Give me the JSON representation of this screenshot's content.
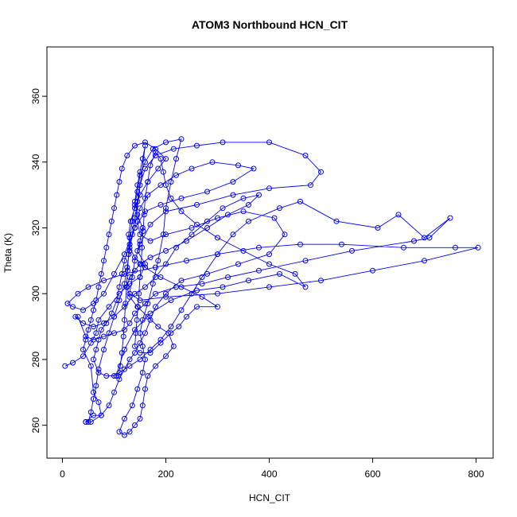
{
  "chart_data": {
    "type": "line",
    "title": "ATOM3 Northbound HCN_CIT",
    "xlabel": "HCN_CIT",
    "ylabel": "Theta (K)",
    "xlim": [
      -30,
      833
    ],
    "ylim": [
      250,
      375
    ],
    "xticks": [
      0,
      200,
      400,
      600,
      800
    ],
    "yticks": [
      260,
      280,
      300,
      320,
      340,
      360
    ],
    "grid": false,
    "legend": "none",
    "color": "#0000ff",
    "marker": "open-circle",
    "series": [
      {
        "name": "",
        "points": [
          [
            5,
            278
          ],
          [
            20,
            279
          ],
          [
            40,
            281
          ],
          [
            55,
            285
          ],
          [
            65,
            288
          ],
          [
            70,
            292
          ],
          [
            90,
            296
          ],
          [
            110,
            300
          ],
          [
            130,
            303
          ],
          [
            150,
            305
          ],
          [
            160,
            309
          ],
          [
            145,
            313
          ],
          [
            150,
            316
          ],
          [
            155,
            320
          ],
          [
            145,
            324
          ],
          [
            140,
            328
          ],
          [
            145,
            333
          ],
          [
            150,
            337
          ],
          [
            155,
            341
          ],
          [
            160,
            345
          ],
          [
            140,
            320
          ],
          [
            120,
            312
          ],
          [
            100,
            306
          ],
          [
            80,
            300
          ],
          [
            60,
            297
          ],
          [
            40,
            295
          ],
          [
            20,
            296
          ],
          [
            10,
            297
          ],
          [
            30,
            300
          ],
          [
            50,
            302
          ],
          [
            80,
            304
          ],
          [
            120,
            306
          ],
          [
            180,
            308
          ],
          [
            240,
            310
          ],
          [
            300,
            312
          ],
          [
            380,
            314
          ],
          [
            460,
            315
          ],
          [
            540,
            315
          ],
          [
            660,
            314
          ],
          [
            760,
            314
          ],
          [
            804,
            314
          ],
          [
            700,
            310
          ],
          [
            600,
            307
          ],
          [
            500,
            304
          ],
          [
            400,
            302
          ],
          [
            300,
            300
          ],
          [
            200,
            299
          ],
          [
            150,
            298
          ],
          [
            130,
            300
          ],
          [
            135,
            305
          ],
          [
            140,
            310
          ],
          [
            150,
            315
          ],
          [
            170,
            321
          ],
          [
            200,
            325
          ],
          [
            260,
            327
          ],
          [
            330,
            330
          ],
          [
            400,
            332
          ],
          [
            480,
            333
          ],
          [
            500,
            337
          ],
          [
            470,
            342
          ],
          [
            400,
            346
          ],
          [
            310,
            346
          ],
          [
            260,
            345
          ],
          [
            215,
            344
          ],
          [
            180,
            342
          ],
          [
            160,
            338
          ],
          [
            150,
            333
          ],
          [
            145,
            328
          ],
          [
            140,
            323
          ],
          [
            135,
            318
          ],
          [
            130,
            313
          ],
          [
            125,
            308
          ],
          [
            120,
            303
          ],
          [
            110,
            298
          ],
          [
            100,
            293
          ],
          [
            90,
            288
          ],
          [
            80,
            283
          ],
          [
            70,
            277
          ],
          [
            65,
            272
          ],
          [
            60,
            268
          ],
          [
            55,
            264
          ],
          [
            50,
            261
          ],
          [
            45,
            261
          ],
          [
            60,
            263
          ],
          [
            75,
            263
          ],
          [
            90,
            266
          ],
          [
            100,
            270
          ],
          [
            110,
            274
          ],
          [
            120,
            277
          ],
          [
            130,
            280
          ],
          [
            140,
            282
          ],
          [
            150,
            285
          ],
          [
            160,
            288
          ],
          [
            170,
            292
          ],
          [
            180,
            296
          ],
          [
            200,
            300
          ],
          [
            230,
            304
          ],
          [
            280,
            306
          ],
          [
            340,
            309
          ],
          [
            400,
            312
          ],
          [
            430,
            318
          ],
          [
            410,
            323
          ],
          [
            350,
            325
          ],
          [
            300,
            323
          ],
          [
            250,
            320
          ],
          [
            200,
            318
          ],
          [
            170,
            316
          ],
          [
            150,
            318
          ],
          [
            145,
            322
          ],
          [
            150,
            326
          ],
          [
            165,
            330
          ],
          [
            190,
            333
          ],
          [
            220,
            336
          ],
          [
            250,
            338
          ],
          [
            290,
            340
          ],
          [
            340,
            339
          ],
          [
            370,
            338
          ],
          [
            330,
            334
          ],
          [
            280,
            331
          ],
          [
            230,
            329
          ],
          [
            190,
            327
          ],
          [
            160,
            325
          ],
          [
            140,
            320
          ],
          [
            130,
            315
          ],
          [
            120,
            310
          ],
          [
            115,
            306
          ],
          [
            110,
            302
          ],
          [
            105,
            298
          ],
          [
            95,
            294
          ],
          [
            85,
            291
          ],
          [
            75,
            289
          ],
          [
            70,
            286
          ],
          [
            65,
            283
          ],
          [
            60,
            280
          ],
          [
            70,
            276
          ],
          [
            85,
            275
          ],
          [
            100,
            275
          ],
          [
            110,
            276
          ],
          [
            130,
            278
          ],
          [
            150,
            280
          ],
          [
            170,
            283
          ],
          [
            190,
            286
          ],
          [
            210,
            290
          ],
          [
            230,
            295
          ],
          [
            250,
            300
          ],
          [
            270,
            305
          ],
          [
            300,
            312
          ],
          [
            330,
            318
          ],
          [
            360,
            322
          ],
          [
            420,
            326
          ],
          [
            460,
            328
          ],
          [
            530,
            322
          ],
          [
            610,
            320
          ],
          [
            650,
            324
          ],
          [
            700,
            317
          ],
          [
            750,
            323
          ],
          [
            710,
            317
          ],
          [
            680,
            316
          ],
          [
            560,
            313
          ],
          [
            470,
            310
          ],
          [
            380,
            307
          ],
          [
            320,
            305
          ],
          [
            270,
            303
          ],
          [
            220,
            302
          ],
          [
            180,
            300
          ],
          [
            160,
            297
          ],
          [
            140,
            294
          ],
          [
            130,
            291
          ],
          [
            120,
            289
          ],
          [
            100,
            288
          ],
          [
            80,
            287
          ],
          [
            60,
            286
          ],
          [
            45,
            287
          ],
          [
            30,
            293
          ],
          [
            25,
            293
          ],
          [
            40,
            291
          ],
          [
            60,
            290
          ],
          [
            80,
            291
          ],
          [
            100,
            293
          ],
          [
            120,
            296
          ],
          [
            140,
            300
          ],
          [
            160,
            302
          ],
          [
            180,
            305
          ],
          [
            200,
            309
          ],
          [
            220,
            314
          ],
          [
            250,
            318
          ],
          [
            280,
            322
          ],
          [
            310,
            326
          ],
          [
            350,
            329
          ],
          [
            380,
            330
          ],
          [
            360,
            327
          ],
          [
            320,
            324
          ],
          [
            280,
            320
          ],
          [
            240,
            316
          ],
          [
            200,
            313
          ],
          [
            170,
            311
          ],
          [
            150,
            309
          ],
          [
            140,
            307
          ],
          [
            130,
            305
          ],
          [
            125,
            302
          ],
          [
            130,
            299
          ],
          [
            145,
            296
          ],
          [
            165,
            293
          ],
          [
            185,
            290
          ],
          [
            205,
            288
          ],
          [
            215,
            284
          ],
          [
            200,
            281
          ],
          [
            180,
            278
          ],
          [
            165,
            275
          ],
          [
            160,
            271
          ],
          [
            155,
            266
          ],
          [
            150,
            262
          ],
          [
            140,
            260
          ],
          [
            130,
            258
          ],
          [
            120,
            257
          ],
          [
            110,
            258
          ],
          [
            120,
            262
          ],
          [
            135,
            266
          ],
          [
            145,
            271
          ],
          [
            155,
            276
          ],
          [
            160,
            280
          ],
          [
            155,
            284
          ],
          [
            150,
            288
          ],
          [
            155,
            292
          ],
          [
            165,
            297
          ],
          [
            175,
            303
          ],
          [
            185,
            310
          ],
          [
            195,
            318
          ],
          [
            200,
            326
          ],
          [
            210,
            334
          ],
          [
            220,
            341
          ],
          [
            230,
            347
          ],
          [
            200,
            346
          ],
          [
            175,
            344
          ],
          [
            160,
            340
          ],
          [
            150,
            336
          ],
          [
            145,
            331
          ],
          [
            140,
            327
          ],
          [
            135,
            322
          ],
          [
            130,
            317
          ],
          [
            128,
            312
          ],
          [
            126,
            307
          ],
          [
            124,
            302
          ],
          [
            122,
            297
          ],
          [
            120,
            292
          ],
          [
            118,
            287
          ],
          [
            115,
            282
          ],
          [
            112,
            278
          ],
          [
            108,
            275
          ],
          [
            104,
            275
          ],
          [
            120,
            283
          ],
          [
            140,
            289
          ],
          [
            170,
            294
          ],
          [
            210,
            298
          ],
          [
            260,
            301
          ],
          [
            310,
            302
          ],
          [
            360,
            304
          ],
          [
            420,
            306
          ],
          [
            470,
            302
          ],
          [
            450,
            306
          ],
          [
            400,
            309
          ],
          [
            350,
            313
          ],
          [
            300,
            317
          ],
          [
            260,
            321
          ],
          [
            230,
            325
          ],
          [
            210,
            329
          ],
          [
            200,
            333
          ],
          [
            195,
            337
          ],
          [
            190,
            341
          ],
          [
            180,
            343
          ],
          [
            170,
            339
          ],
          [
            165,
            334
          ],
          [
            160,
            329
          ],
          [
            158,
            324
          ],
          [
            156,
            319
          ],
          [
            154,
            314
          ],
          [
            152,
            309
          ],
          [
            150,
            305
          ],
          [
            148,
            300
          ],
          [
            146,
            296
          ],
          [
            144,
            292
          ],
          [
            142,
            288
          ],
          [
            140,
            284
          ],
          [
            150,
            282
          ],
          [
            170,
            282
          ],
          [
            190,
            285
          ],
          [
            210,
            288
          ],
          [
            225,
            290
          ],
          [
            240,
            293
          ],
          [
            260,
            296
          ],
          [
            300,
            296
          ],
          [
            270,
            299
          ],
          [
            230,
            302
          ],
          [
            190,
            305
          ],
          [
            160,
            308
          ],
          [
            140,
            311
          ],
          [
            130,
            314
          ],
          [
            128,
            318
          ],
          [
            132,
            322
          ],
          [
            140,
            326
          ],
          [
            150,
            330
          ],
          [
            165,
            334
          ],
          [
            185,
            338
          ],
          [
            200,
            341
          ],
          [
            180,
            344
          ],
          [
            160,
            346
          ],
          [
            140,
            345
          ],
          [
            125,
            342
          ],
          [
            115,
            338
          ],
          [
            110,
            334
          ],
          [
            105,
            330
          ],
          [
            100,
            326
          ],
          [
            95,
            322
          ],
          [
            90,
            318
          ],
          [
            85,
            314
          ],
          [
            80,
            310
          ],
          [
            75,
            306
          ],
          [
            70,
            302
          ],
          [
            65,
            298
          ],
          [
            60,
            295
          ],
          [
            55,
            292
          ],
          [
            50,
            289
          ],
          [
            45,
            286
          ],
          [
            40,
            283
          ],
          [
            55,
            278
          ],
          [
            60,
            270
          ],
          [
            70,
            267
          ],
          [
            75,
            263
          ],
          [
            55,
            261
          ],
          [
            45,
            261
          ]
        ]
      }
    ]
  }
}
